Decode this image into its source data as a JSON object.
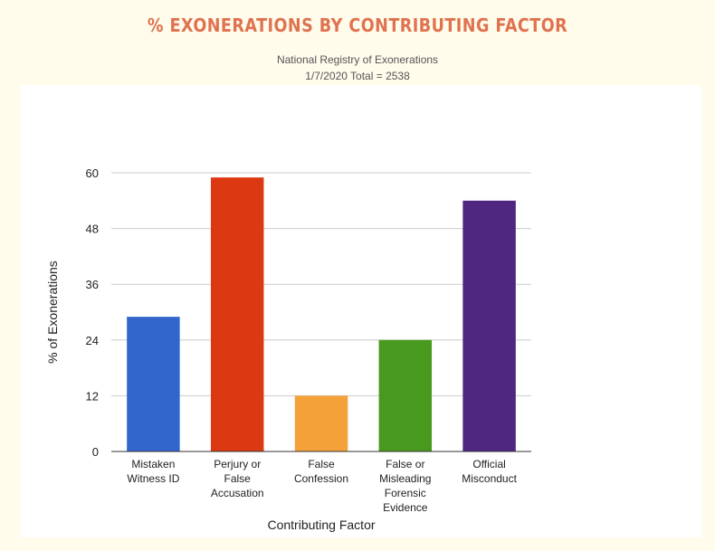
{
  "page": {
    "title": "% EXONERATIONS BY CONTRIBUTING FACTOR",
    "subtitle_line1": "National Registry of Exonerations",
    "subtitle_line2": "1/7/2020 Total = 2538"
  },
  "chart_data": {
    "type": "bar",
    "categories": [
      [
        "Mistaken",
        "Witness ID"
      ],
      [
        "Perjury or",
        "False",
        "Accusation"
      ],
      [
        "False",
        "Confession"
      ],
      [
        "False or",
        "Misleading",
        "Forensic",
        "Evidence"
      ],
      [
        "Official",
        "Misconduct"
      ]
    ],
    "values": [
      29,
      59,
      12,
      24,
      54
    ],
    "colors": [
      "#3366cc",
      "#dc3912",
      "#f4a13a",
      "#489a1e",
      "#4f2680"
    ],
    "xlabel": "Contributing Factor",
    "ylabel": "% of Exonerations",
    "ylim": [
      0,
      60
    ],
    "yticks": [
      0,
      12,
      24,
      36,
      48,
      60
    ],
    "grid": true,
    "legend": "none"
  }
}
